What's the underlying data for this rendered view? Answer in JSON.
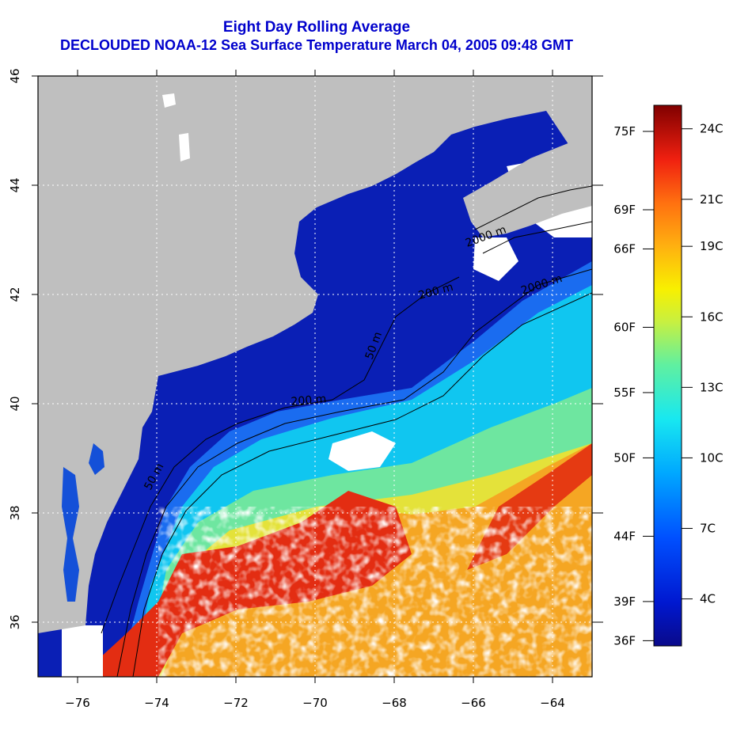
{
  "title": "Eight Day Rolling Average",
  "subtitle": "DECLOUDED NOAA-12 Sea Surface Temperature March 04, 2005 09:48 GMT",
  "map": {
    "lon_range": [
      -77,
      -63
    ],
    "lat_range": [
      35,
      46
    ],
    "x_ticks": [
      -76,
      -74,
      -72,
      -70,
      -68,
      -66,
      -64
    ],
    "y_ticks": [
      36,
      38,
      40,
      42,
      44,
      46
    ],
    "grid": "dotted",
    "contour_labels": [
      "2000 m",
      "200 m",
      "50 m",
      "2000 m",
      "200 m",
      "50 m"
    ]
  },
  "colorbar": {
    "celsius_labels": [
      "24C",
      "21C",
      "19C",
      "16C",
      "13C",
      "10C",
      "7C",
      "4C"
    ],
    "fahrenheit_labels": [
      "75F",
      "69F",
      "66F",
      "60F",
      "55F",
      "50F",
      "44F",
      "39F",
      "36F"
    ],
    "celsius_range": [
      2,
      25
    ]
  },
  "colors": {
    "land": "#bfbfbf",
    "no_data": "#ffffff",
    "title": "#0000cc",
    "warm": "#e32d12",
    "cold": "#0a1fb5"
  }
}
